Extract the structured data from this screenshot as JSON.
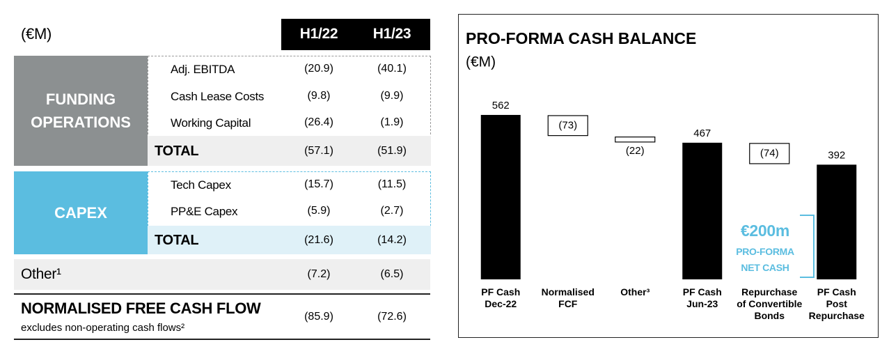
{
  "table": {
    "unit": "(€M)",
    "columns": [
      "H1/22",
      "H1/23"
    ],
    "sections": [
      {
        "title": "FUNDING\nOPERATIONS",
        "rows": [
          {
            "label": "Adj. EBITDA",
            "values": [
              "(20.9)",
              "(40.1)"
            ]
          },
          {
            "label": "Cash Lease Costs",
            "values": [
              "(9.8)",
              "(9.9)"
            ]
          },
          {
            "label": "Working Capital",
            "values": [
              "(26.4)",
              "(1.9)"
            ]
          }
        ],
        "total": {
          "label": "TOTAL",
          "values": [
            "(57.1)",
            "(51.9)"
          ]
        }
      },
      {
        "title": "CAPEX",
        "rows": [
          {
            "label": "Tech Capex",
            "values": [
              "(15.7)",
              "(11.5)"
            ]
          },
          {
            "label": "PP&E Capex",
            "values": [
              "(5.9)",
              "(2.7)"
            ]
          }
        ],
        "total": {
          "label": "TOTAL",
          "values": [
            "(21.6)",
            "(14.2)"
          ]
        }
      }
    ],
    "other": {
      "label": "Other¹",
      "values": [
        "(7.2)",
        "(6.5)"
      ]
    },
    "footer": {
      "label": "NORMALISED FREE CASH FLOW",
      "note": "excludes non-operating cash flows²",
      "values": [
        "(85.9)",
        "(72.6)"
      ]
    }
  },
  "chart_data": {
    "type": "waterfall",
    "title": "PRO-FORMA CASH BALANCE",
    "subtitle": "(€M)",
    "categories": [
      "PF Cash\nDec-22",
      "Normalised\nFCF",
      "Other³",
      "PF Cash\nJun-23",
      "Repurchase\nof Convertible\nBonds",
      "PF Cash\nPost\nRepurchase"
    ],
    "values": [
      562,
      -73,
      -22,
      467,
      -74,
      392
    ],
    "value_labels": [
      "562",
      "(73)",
      "(22)",
      "467",
      "(74)",
      "392"
    ],
    "color": "#000000",
    "annotation": {
      "value": "€200m",
      "text": "PRO-FORMA\nNET CASH",
      "color": "#5bbde0"
    }
  }
}
